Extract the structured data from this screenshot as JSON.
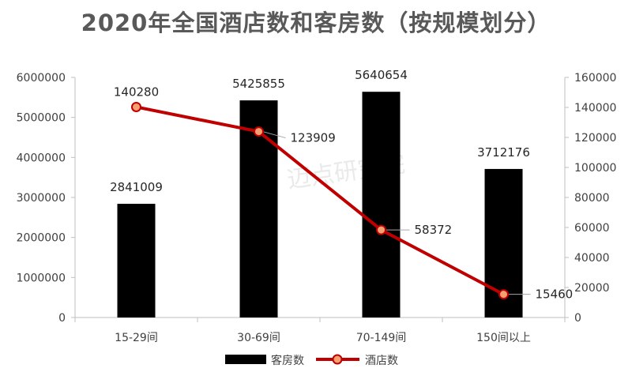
{
  "chart_data": {
    "type": "bar",
    "title": "2020年全国酒店数和客房数（按规模划分）",
    "categories": [
      "15-29间",
      "30-69间",
      "70-149间",
      "150间以上"
    ],
    "series": [
      {
        "name": "客房数",
        "type": "bar",
        "axis": "left",
        "color": "#000000",
        "values": [
          2841009,
          5425855,
          5640654,
          3712176
        ]
      },
      {
        "name": "酒店数",
        "type": "line",
        "axis": "right",
        "color": "#c00000",
        "marker_color": "#f4a070",
        "values": [
          140280,
          123909,
          58372,
          15460
        ]
      }
    ],
    "ylim_left": [
      0,
      6000000
    ],
    "yticks_left": [
      0,
      1000000,
      2000000,
      3000000,
      4000000,
      5000000,
      6000000
    ],
    "ylim_right": [
      0,
      160000
    ],
    "yticks_right": [
      0,
      20000,
      40000,
      60000,
      80000,
      100000,
      120000,
      140000,
      160000
    ],
    "legend_position": "bottom",
    "watermark": "迈点研究院",
    "grid": false
  }
}
